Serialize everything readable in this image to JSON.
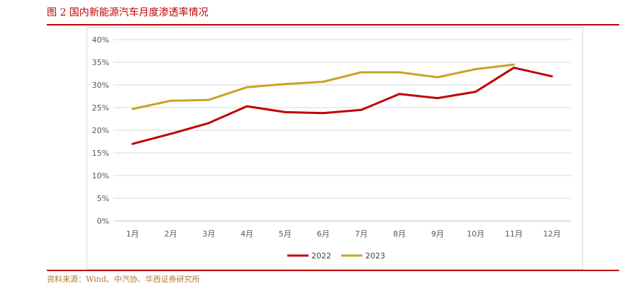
{
  "header": {
    "title": "图 2 国内新能源汽车月度渗透率情况"
  },
  "footer": {
    "source": "资料来源：Wind、中汽协、华西证券研究所"
  },
  "colors": {
    "accent": "#c00000",
    "series_2022": "#c00000",
    "series_2023": "#c9a227",
    "grid": "#d9d9d9"
  },
  "chart_data": {
    "type": "line",
    "title": "",
    "xlabel": "",
    "ylabel": "",
    "categories": [
      "1月",
      "2月",
      "3月",
      "4月",
      "5月",
      "6月",
      "7月",
      "8月",
      "9月",
      "10月",
      "11月",
      "12月"
    ],
    "y_ticks": [
      "0%",
      "5%",
      "10%",
      "15%",
      "20%",
      "25%",
      "30%",
      "35%",
      "40%"
    ],
    "ylim": [
      0,
      40
    ],
    "unit": "%",
    "grid": true,
    "legend_position": "bottom",
    "series": [
      {
        "name": "2022",
        "color": "#c00000",
        "values": [
          17.0,
          19.2,
          21.6,
          25.3,
          24.0,
          23.8,
          24.5,
          28.0,
          27.1,
          28.5,
          33.8,
          31.9
        ]
      },
      {
        "name": "2023",
        "color": "#c9a227",
        "values": [
          24.7,
          26.5,
          26.7,
          29.5,
          30.2,
          30.7,
          32.8,
          32.8,
          31.7,
          33.5,
          34.5,
          null
        ]
      }
    ]
  }
}
